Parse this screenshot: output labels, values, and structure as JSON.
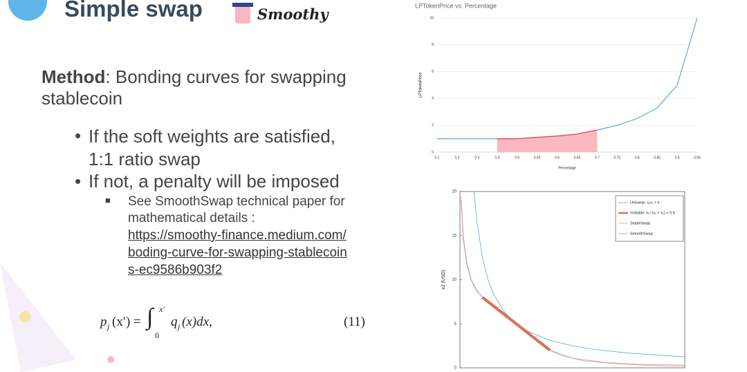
{
  "slide": {
    "title": "Simple swap",
    "logo_text": "Smoothy",
    "method_label": "Method",
    "method_text": ": Bonding curves for swapping stablecoin",
    "bullets": [
      "If the soft weights are satisfied, 1:1 ratio swap",
      "If not, a penalty will be imposed"
    ],
    "sub_bullet": "See SmoothSwap technical paper for mathematical details :",
    "link_lines": [
      "https://smoothy-finance.medium.com/",
      "boding-curve-for-swapping-stablecoin",
      "s-ec9586b903f2"
    ],
    "formula": {
      "p": "p",
      "p_sub": "j",
      "lhs": "(x′) =",
      "integral": "∫",
      "upper": "x′",
      "lower": "0",
      "q": "q",
      "q_sub": "j",
      "rhs": "(x)dx,",
      "number": "(11)"
    }
  },
  "chart_data": [
    {
      "type": "line",
      "title": "LPTokenPrice vs. Percentage",
      "x_label": "Percentage",
      "y_label": "LPTokenPrice",
      "categories": [
        "0.1",
        "0.2",
        "0.3",
        "0.4",
        "0.5",
        "0.55",
        "0.6",
        "0.65",
        "0.7",
        "0.75",
        "0.8",
        "0.85",
        "0.9",
        "0.95"
      ],
      "series": [
        {
          "color": "#5aa7d8",
          "values": [
            1,
            1,
            1,
            1,
            1,
            1.1,
            1.2,
            1.35,
            1.65,
            2,
            2.5,
            3.3,
            5,
            10
          ]
        },
        {
          "color": "#e04050",
          "fill": "#f9b9bf",
          "values": [
            null,
            null,
            null,
            1,
            1,
            1.1,
            1.2,
            1.35,
            1.65,
            null,
            null,
            null,
            null,
            null
          ]
        }
      ],
      "ylim": [
        0,
        10
      ],
      "yticks": [
        0,
        2,
        4,
        6,
        8,
        10
      ],
      "grid": true
    },
    {
      "type": "line",
      "y_label": "x2 (USD)",
      "xlim": [
        0,
        20
      ],
      "ylim": [
        0,
        20
      ],
      "yticks": [
        0,
        5,
        10,
        15,
        20
      ],
      "legend": "top-right",
      "series": [
        {
          "name": "Uniswap: x₁x₂ = k",
          "color": "#5aa7d8",
          "line_width": 0.8,
          "x": [
            1.25,
            1.5,
            2,
            2.5,
            3,
            4,
            5,
            6,
            8,
            10,
            12,
            15,
            20
          ],
          "values": [
            20,
            16.67,
            12.5,
            10,
            8.33,
            6.25,
            5,
            4.17,
            3.13,
            2.5,
            2.08,
            1.67,
            1.25
          ]
        },
        {
          "name": "mStable: xᵢ / (x₁ + x₂) < 0.8",
          "color": "#e0602a",
          "line_width": 4,
          "x": [
            2,
            8
          ],
          "values": [
            8,
            2
          ]
        },
        {
          "name": "StableSwap",
          "color": "#e8a07a",
          "line_width": 0.8,
          "x": [
            0.1,
            0.3,
            0.6,
            1,
            1.5,
            2,
            3,
            5,
            7,
            8,
            9,
            11,
            14,
            17,
            20
          ],
          "values": [
            19.5,
            15,
            12,
            10,
            8.8,
            8,
            7,
            5,
            3,
            2,
            1.4,
            0.8,
            0.45,
            0.25,
            0.15
          ]
        },
        {
          "name": "SmoothSwap",
          "color": "#b58fc0",
          "line_width": 0.8,
          "x": [
            0.1,
            0.3,
            0.6,
            1,
            1.5,
            2,
            3,
            5,
            7,
            8,
            10,
            13,
            16,
            20
          ],
          "values": [
            19,
            14.5,
            11.8,
            9.9,
            8.7,
            8,
            7,
            5,
            3,
            2,
            1.1,
            0.6,
            0.4,
            0.3
          ]
        }
      ]
    }
  ]
}
